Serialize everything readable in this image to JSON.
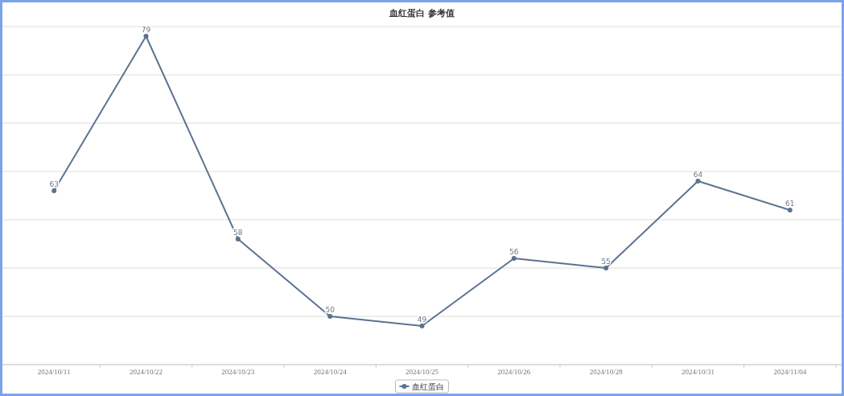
{
  "chart_data": {
    "type": "line",
    "title": "血红蛋白 参考值",
    "categories": [
      "2024/10/11",
      "2024/10/22",
      "2024/10/23",
      "2024/10/24",
      "2024/10/25",
      "2024/10/26",
      "2024/10/28",
      "2024/10/31",
      "2024/11/04"
    ],
    "series": [
      {
        "name": "血红蛋白",
        "color": "#5b7390",
        "values": [
          63,
          79,
          58,
          50,
          49,
          56,
          55,
          64,
          61
        ]
      }
    ],
    "ylim": [
      45,
      80
    ],
    "yticks": [
      {
        "value": 45,
        "label": null
      },
      {
        "value": 50,
        "label": null
      },
      {
        "value": 55,
        "label": null
      },
      {
        "value": 60,
        "label": null
      },
      {
        "value": 65,
        "label": null
      },
      {
        "value": 70,
        "label": null
      },
      {
        "value": 75,
        "label": null
      },
      {
        "value": 80,
        "label": null
      }
    ],
    "tick_labels": "x",
    "grid": "y",
    "legend": "bottom",
    "marker": "circle",
    "line_style": "solid",
    "data_labels": true
  }
}
